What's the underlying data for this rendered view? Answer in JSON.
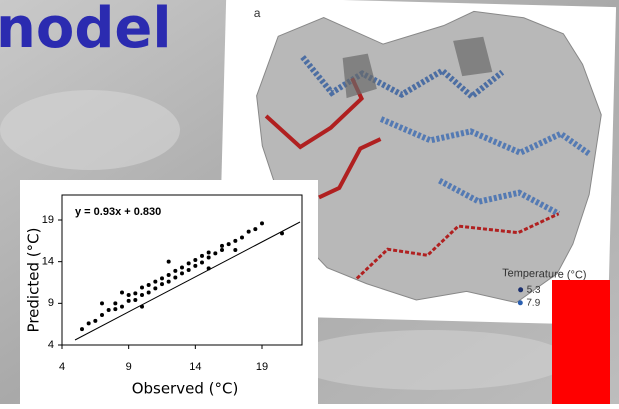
{
  "header": {
    "title": "nodel"
  },
  "map": {
    "label": "a",
    "legend_title": "Temperature (°C)",
    "legend_items": [
      "5.3",
      "7.9"
    ]
  },
  "chart_data": {
    "type": "scatter",
    "annotation": "y = 0.93x + 0.830",
    "x_label": "Observed (°C)",
    "y_label": "Predicted (°C)",
    "color": "#000000",
    "xlim": [
      4,
      22
    ],
    "ylim": [
      4,
      22
    ],
    "xticks": [
      4,
      9,
      14,
      19
    ],
    "yticks": [
      4,
      9,
      14,
      19
    ],
    "x": [
      5.5,
      6,
      6.5,
      7,
      7.5,
      8,
      8,
      8.5,
      9,
      9,
      9.5,
      9.5,
      10,
      10,
      10.5,
      10.5,
      11,
      11,
      11.5,
      11.5,
      12,
      12,
      12.5,
      12.5,
      13,
      13,
      13.5,
      13.5,
      14,
      14,
      14.5,
      14.5,
      15,
      15,
      15.5,
      16,
      16,
      16.5,
      17,
      17.5,
      18,
      18.5,
      19,
      20.5,
      7,
      10,
      12,
      15,
      17,
      8.5
    ],
    "y": [
      5.9,
      6.6,
      6.9,
      7.6,
      8.2,
      8.3,
      9.0,
      8.6,
      9.3,
      10.0,
      9.4,
      10.2,
      10.0,
      10.9,
      10.3,
      11.2,
      10.8,
      11.6,
      11.3,
      12.0,
      11.6,
      12.4,
      12.1,
      12.9,
      12.6,
      13.3,
      13.0,
      13.8,
      13.5,
      14.2,
      13.9,
      14.7,
      14.5,
      15.1,
      15.0,
      15.4,
      15.9,
      16.1,
      16.5,
      16.9,
      17.6,
      17.9,
      18.6,
      17.4,
      9.0,
      8.6,
      14.0,
      13.2,
      15.4,
      10.3
    ]
  }
}
